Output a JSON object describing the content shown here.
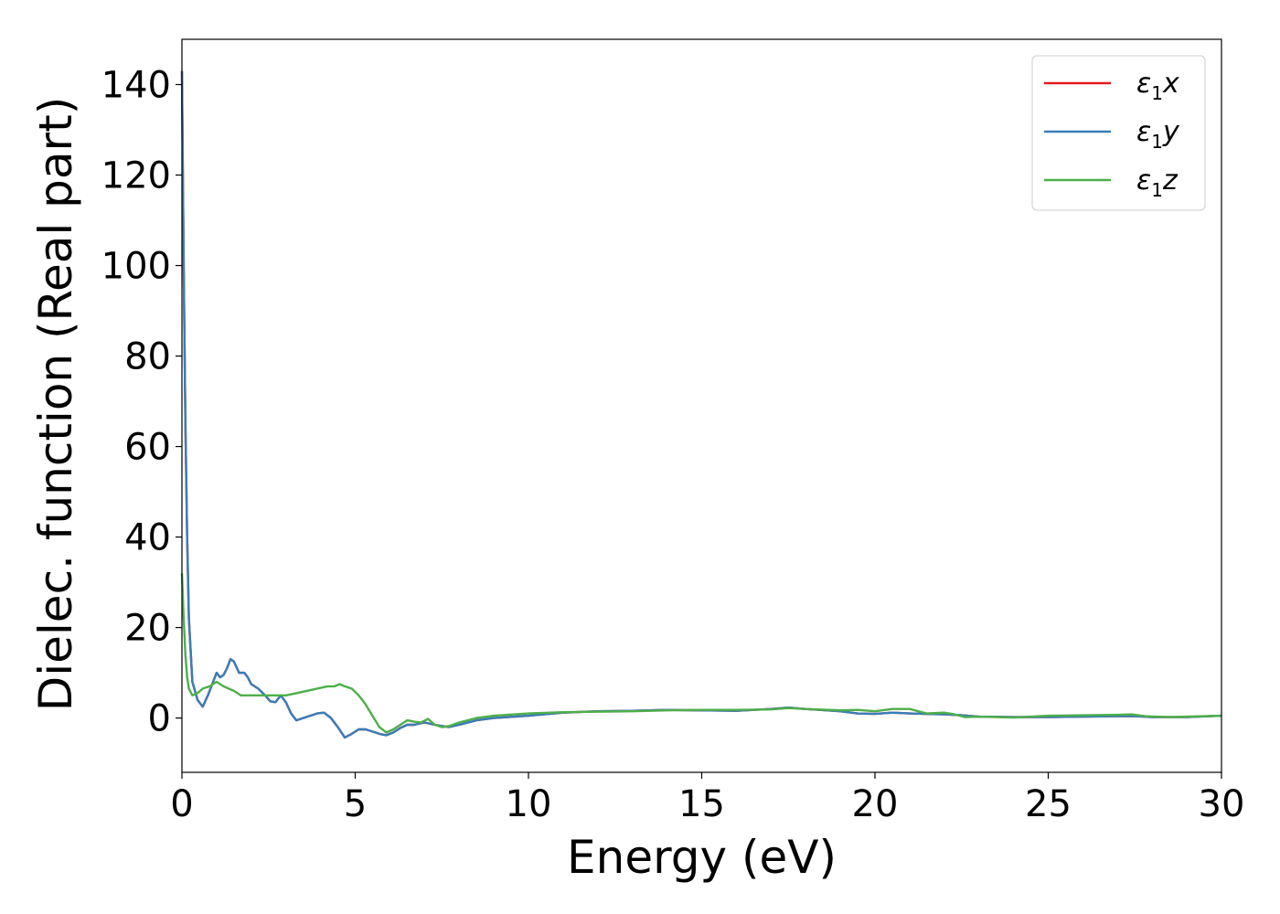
{
  "chart_data": {
    "type": "line",
    "xlabel": "Energy (eV)",
    "ylabel": "Dielec. function (Real part)",
    "xlim": [
      0,
      30
    ],
    "ylim": [
      -12,
      150
    ],
    "xticks": [
      0,
      5,
      10,
      15,
      20,
      25,
      30
    ],
    "yticks": [
      0,
      20,
      40,
      60,
      80,
      100,
      120,
      140
    ],
    "grid": false,
    "legend_position": "top-right",
    "series": [
      {
        "name": "x",
        "legend_base": "ε",
        "legend_sub": "1",
        "legend_suffix": "x",
        "color": "#e41a1c",
        "x": [
          0,
          0.05,
          0.1,
          0.15,
          0.2,
          0.3,
          0.45,
          0.6,
          0.75,
          0.9,
          1.0,
          1.1,
          1.2,
          1.3,
          1.4,
          1.5,
          1.65,
          1.8,
          1.9,
          2.0,
          2.2,
          2.4,
          2.55,
          2.7,
          2.85,
          3.0,
          3.15,
          3.3,
          3.5,
          3.7,
          3.9,
          4.1,
          4.3,
          4.5,
          4.7,
          4.9,
          5.1,
          5.3,
          5.5,
          5.7,
          5.9,
          6.1,
          6.3,
          6.5,
          6.7,
          7.0,
          7.3,
          7.7,
          8.0,
          8.5,
          9.0,
          10.0,
          11.0,
          12.0,
          13.0,
          14.0,
          15.0,
          16.0,
          17.0,
          17.5,
          18.0,
          19.0,
          19.5,
          20.0,
          20.5,
          21.0,
          21.5,
          22.0,
          22.5,
          23.0,
          24.0,
          25.0,
          26.0,
          27.0,
          27.5,
          28.0,
          29.0,
          30.0
        ],
        "y": [
          143,
          100,
          65,
          40,
          22,
          8,
          4,
          2.5,
          5,
          8,
          10,
          9,
          9.5,
          11,
          13,
          12.5,
          10,
          10,
          9,
          7.5,
          6.5,
          5,
          3.7,
          3.5,
          5,
          3.5,
          1,
          -0.5,
          0,
          0.5,
          1,
          1.2,
          0,
          -2,
          -4.3,
          -3.5,
          -2.5,
          -2.5,
          -3,
          -3.5,
          -3.8,
          -3.2,
          -2.2,
          -1.5,
          -1.5,
          -1,
          -1.5,
          -2,
          -1.5,
          -0.5,
          0,
          0.5,
          1.2,
          1.5,
          1.6,
          1.8,
          1.7,
          1.6,
          2.0,
          2.3,
          2.0,
          1.5,
          1.0,
          0.9,
          1.2,
          1.0,
          0.9,
          0.8,
          0.6,
          0.3,
          0.2,
          0.2,
          0.3,
          0.4,
          0.4,
          0.2,
          0.2,
          0.5
        ]
      },
      {
        "name": "y",
        "legend_base": "ε",
        "legend_sub": "1",
        "legend_suffix": "y",
        "color": "#377eb8",
        "x": [
          0,
          0.05,
          0.1,
          0.15,
          0.2,
          0.3,
          0.45,
          0.6,
          0.75,
          0.9,
          1.0,
          1.1,
          1.2,
          1.3,
          1.4,
          1.5,
          1.65,
          1.8,
          1.9,
          2.0,
          2.2,
          2.4,
          2.55,
          2.7,
          2.85,
          3.0,
          3.15,
          3.3,
          3.5,
          3.7,
          3.9,
          4.1,
          4.3,
          4.5,
          4.7,
          4.9,
          5.1,
          5.3,
          5.5,
          5.7,
          5.9,
          6.1,
          6.3,
          6.5,
          6.7,
          7.0,
          7.3,
          7.7,
          8.0,
          8.5,
          9.0,
          10.0,
          11.0,
          12.0,
          13.0,
          14.0,
          15.0,
          16.0,
          17.0,
          17.5,
          18.0,
          19.0,
          19.5,
          20.0,
          20.5,
          21.0,
          21.5,
          22.0,
          22.5,
          23.0,
          24.0,
          25.0,
          26.0,
          27.0,
          27.5,
          28.0,
          29.0,
          30.0
        ],
        "y": [
          143,
          100,
          65,
          40,
          22,
          8,
          4,
          2.5,
          5,
          8,
          10,
          9,
          9.5,
          11,
          13,
          12.5,
          10,
          10,
          9,
          7.5,
          6.5,
          5,
          3.7,
          3.5,
          5,
          3.5,
          1,
          -0.5,
          0,
          0.5,
          1,
          1.2,
          0,
          -2,
          -4.3,
          -3.5,
          -2.5,
          -2.5,
          -3,
          -3.5,
          -3.8,
          -3.2,
          -2.2,
          -1.5,
          -1.5,
          -1,
          -1.5,
          -2,
          -1.5,
          -0.5,
          0,
          0.5,
          1.2,
          1.5,
          1.6,
          1.8,
          1.7,
          1.6,
          2.0,
          2.3,
          2.0,
          1.5,
          1.0,
          0.9,
          1.2,
          1.0,
          0.9,
          0.8,
          0.6,
          0.3,
          0.2,
          0.2,
          0.3,
          0.4,
          0.4,
          0.2,
          0.2,
          0.5
        ]
      },
      {
        "name": "z",
        "legend_base": "ε",
        "legend_sub": "1",
        "legend_suffix": "z",
        "color": "#4daf4a",
        "x": [
          0,
          0.05,
          0.1,
          0.15,
          0.2,
          0.3,
          0.45,
          0.6,
          0.8,
          1.0,
          1.2,
          1.5,
          1.7,
          1.9,
          2.1,
          2.4,
          2.7,
          3.0,
          3.3,
          3.6,
          3.9,
          4.2,
          4.4,
          4.55,
          4.7,
          4.9,
          5.1,
          5.3,
          5.5,
          5.7,
          5.9,
          6.1,
          6.3,
          6.5,
          6.7,
          6.9,
          7.1,
          7.3,
          7.5,
          7.7,
          8.0,
          8.5,
          9.0,
          10.0,
          11.0,
          12.0,
          13.0,
          14.0,
          15.0,
          16.0,
          17.0,
          17.5,
          18.0,
          19.0,
          19.5,
          20.0,
          20.5,
          21.0,
          21.5,
          22.0,
          22.3,
          22.6,
          23.0,
          24.0,
          25.0,
          26.0,
          27.0,
          27.4,
          27.8,
          28.5,
          29.0,
          30.0
        ],
        "y": [
          32,
          22,
          14,
          9,
          6.5,
          5,
          5.5,
          6.5,
          7,
          8,
          7,
          6,
          5,
          5,
          5,
          5,
          5,
          5,
          5.5,
          6,
          6.5,
          7,
          7,
          7.5,
          7,
          6.5,
          5,
          3,
          0.5,
          -2,
          -3.2,
          -2.5,
          -1.5,
          -0.5,
          -0.8,
          -1,
          -0.2,
          -1.5,
          -2,
          -1.8,
          -1,
          0,
          0.5,
          1,
          1.3,
          1.4,
          1.5,
          1.7,
          1.8,
          1.8,
          1.9,
          2.2,
          2.0,
          1.7,
          1.8,
          1.5,
          2.0,
          2.0,
          1.0,
          1.2,
          0.8,
          0.2,
          0.3,
          0.1,
          0.5,
          0.6,
          0.7,
          0.8,
          0.4,
          0.2,
          0.3,
          0.5
        ]
      }
    ]
  }
}
